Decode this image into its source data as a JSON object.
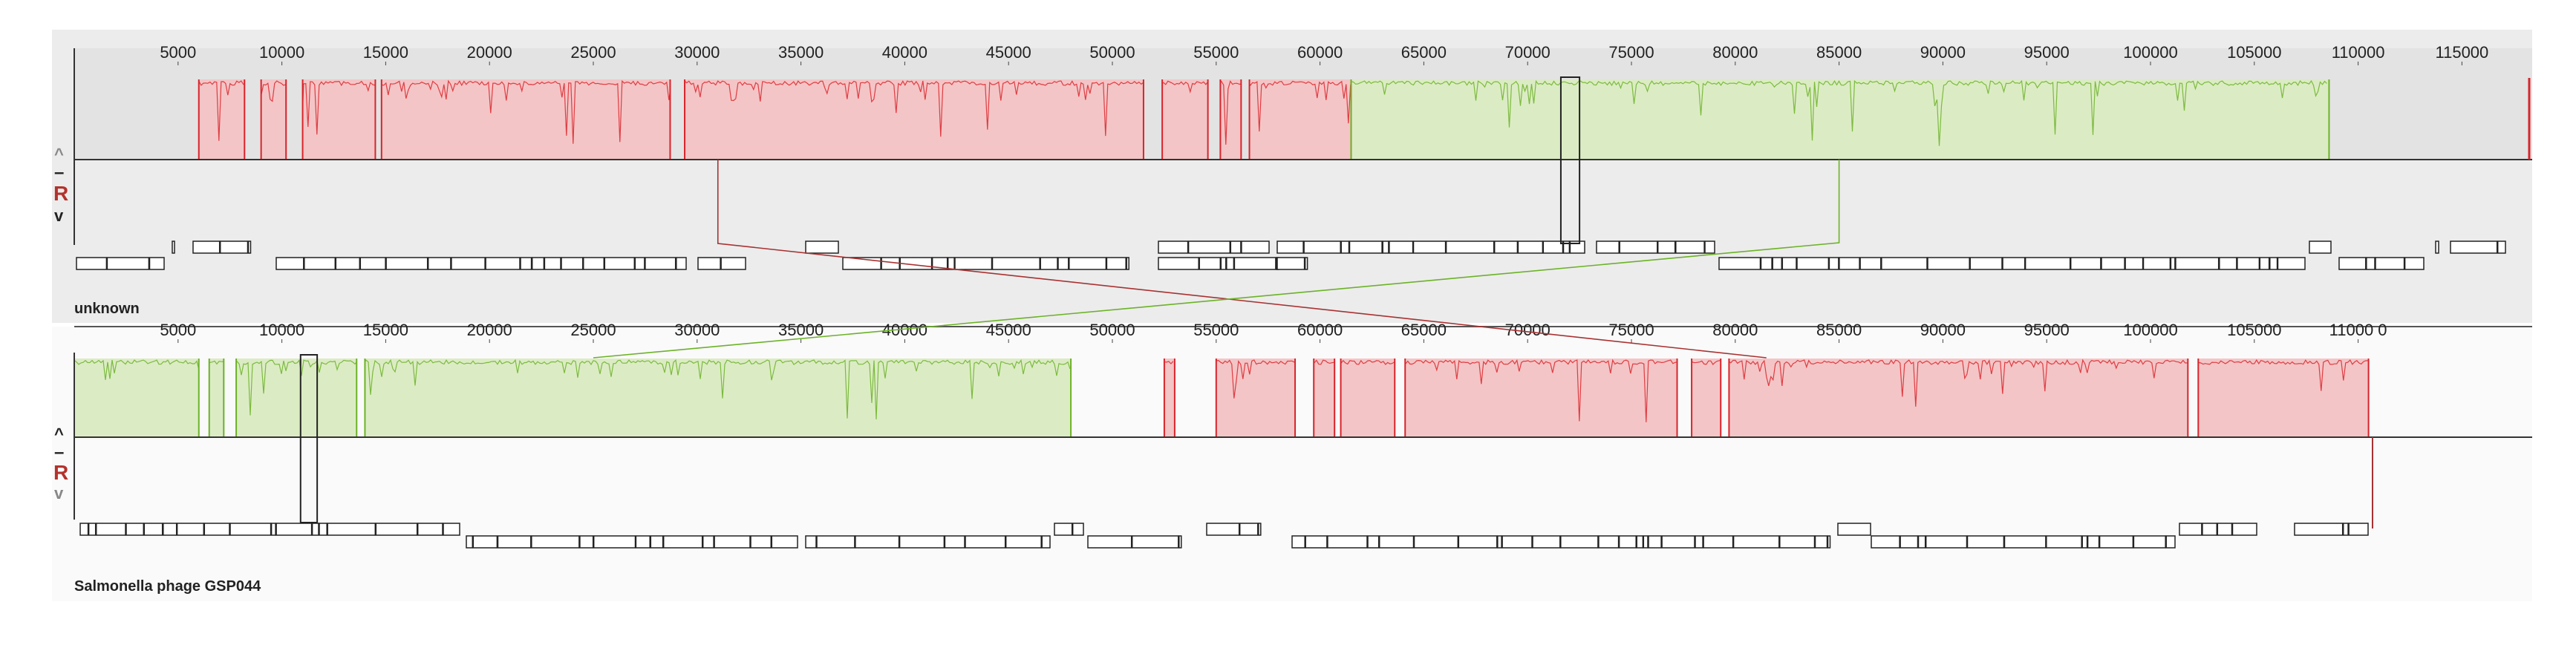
{
  "axis": {
    "tick_labels": [
      "5000",
      "10000",
      "15000",
      "20000",
      "25000",
      "30000",
      "35000",
      "40000",
      "45000",
      "50000",
      "55000",
      "60000",
      "65000",
      "70000",
      "75000",
      "80000",
      "85000",
      "90000",
      "95000",
      "100000",
      "105000",
      "110000",
      "115000"
    ],
    "tick_labels_bottom": [
      "5000",
      "10000",
      "15000",
      "20000",
      "25000",
      "30000",
      "35000",
      "40000",
      "45000",
      "50000",
      "55000",
      "60000",
      "65000",
      "70000",
      "75000",
      "80000",
      "85000",
      "90000",
      "95000",
      "100000",
      "105000",
      "11000 0"
    ]
  },
  "genomes": [
    {
      "label": "unknown",
      "controls": {
        "up": "^",
        "minus": "–",
        "reverse": "R",
        "down": "v"
      },
      "blocks": [
        {
          "color": "#d9242b",
          "fill": "#f4c5c6",
          "start": 6000,
          "end": 61500,
          "gaps": [
            [
              8200,
              9000
            ],
            [
              10200,
              11000
            ],
            [
              14500,
              14800
            ],
            [
              28700,
              29400
            ],
            [
              51500,
              52400
            ],
            [
              54600,
              55200
            ],
            [
              56200,
              56600
            ]
          ]
        },
        {
          "color": "#6cb228",
          "fill": "#dbecc4",
          "start": 61500,
          "end": 108600,
          "gaps": []
        }
      ],
      "mapping_lines": [
        {
          "color": "#a83232",
          "from": 31000,
          "to": 81500
        },
        {
          "color": "#6cb228",
          "from": 85000,
          "to": 25000
        }
      ],
      "highlight": {
        "start": 71600,
        "end": 72500
      }
    },
    {
      "label": "Salmonella phage GSP044",
      "controls": {
        "up": "^",
        "minus": "–",
        "reverse": "R",
        "down": "v"
      },
      "blocks": [
        {
          "color": "#6cb228",
          "fill": "#dbecc4",
          "start": 0,
          "end": 48000,
          "gaps": [
            [
              6000,
              6500
            ],
            [
              7200,
              7800
            ],
            [
              13600,
              14000
            ]
          ]
        },
        {
          "color": "#d9242b",
          "fill": "#f4c5c6",
          "start": 52500,
          "end": 53000,
          "gaps": []
        },
        {
          "color": "#d9242b",
          "fill": "#f4c5c6",
          "start": 55000,
          "end": 110500,
          "gaps": [
            [
              58800,
              59700
            ],
            [
              60700,
              61000
            ],
            [
              63600,
              64100
            ],
            [
              77200,
              77900
            ],
            [
              79300,
              79700
            ],
            [
              101800,
              102300
            ]
          ]
        }
      ],
      "highlight": {
        "start": 10900,
        "end": 11700
      }
    }
  ]
}
